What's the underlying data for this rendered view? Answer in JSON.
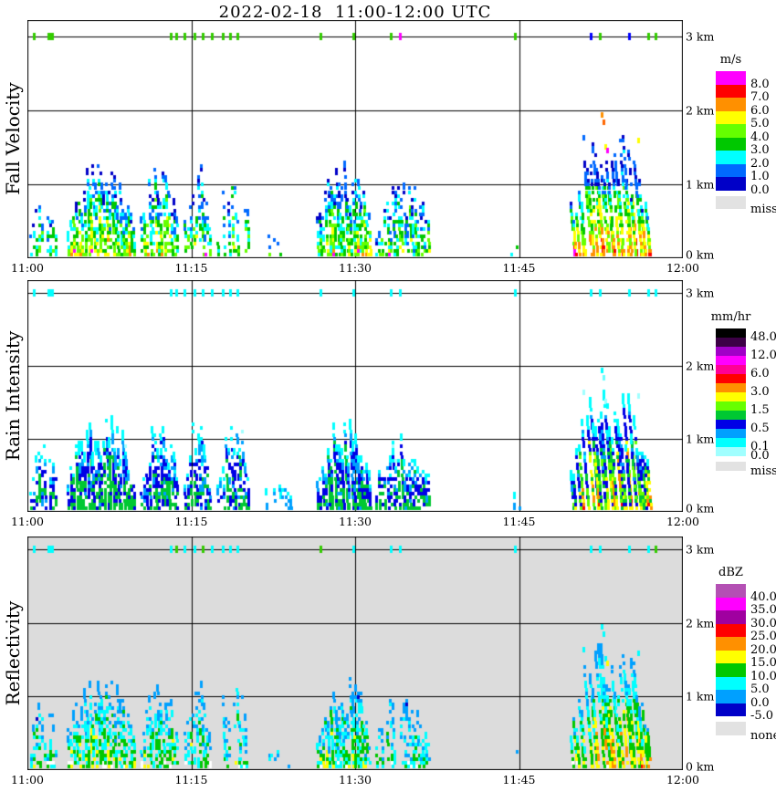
{
  "title": "2022-02-18  11:00-12:00 UTC",
  "axes": {
    "x_tick_labels": [
      "11:00",
      "11:15",
      "11:30",
      "11:45",
      "12:00"
    ],
    "x_tick_minutes": [
      0,
      15,
      30,
      45,
      60
    ],
    "km_labels": [
      "3 km",
      "2 km",
      "1 km",
      "0 km"
    ],
    "km_values": [
      3,
      2,
      1,
      0
    ]
  },
  "panels": [
    {
      "name": "fall-velocity",
      "ylabel": "Fall Velocity",
      "bg": "#FFFFFF",
      "legend": {
        "title": "m/s",
        "block_h": 14.5,
        "entries": [
          {
            "color": "#FF00FF",
            "label": "8.0"
          },
          {
            "color": "#FF0000",
            "label": "7.0"
          },
          {
            "color": "#FF9000",
            "label": "6.0"
          },
          {
            "color": "#FFFF00",
            "label": "5.0"
          },
          {
            "color": "#66FF00",
            "label": "4.0"
          },
          {
            "color": "#00C800",
            "label": "3.0"
          },
          {
            "color": "#00FFFF",
            "label": "2.0"
          },
          {
            "color": "#0069FF",
            "label": "1.0"
          },
          {
            "color": "#0000C8",
            "label": "0.0"
          }
        ],
        "miss": {
          "color": "#E2E2E2",
          "label": "miss"
        }
      }
    },
    {
      "name": "rain-intensity",
      "ylabel": "Rain Intensity",
      "bg": "#FFFFFF",
      "legend": {
        "title": "mm/hr",
        "block_h": 10,
        "entries": [
          {
            "color": "#000000",
            "label": "48.0"
          },
          {
            "color": "#3C0046",
            "label": ""
          },
          {
            "color": "#A000C8",
            "label": "12.0"
          },
          {
            "color": "#FF00FF",
            "label": ""
          },
          {
            "color": "#FF0096",
            "label": "6.0"
          },
          {
            "color": "#FF0000",
            "label": ""
          },
          {
            "color": "#FF9000",
            "label": "3.0"
          },
          {
            "color": "#FFFF00",
            "label": ""
          },
          {
            "color": "#66FF00",
            "label": "1.5"
          },
          {
            "color": "#00C832",
            "label": ""
          },
          {
            "color": "#0000E6",
            "label": "0.5"
          },
          {
            "color": "#00A0FF",
            "label": ""
          },
          {
            "color": "#00FFFF",
            "label": "0.1"
          },
          {
            "color": "#A0FFFF",
            "label": "0.0"
          }
        ],
        "miss": {
          "color": "#E2E2E2",
          "label": "miss"
        }
      }
    },
    {
      "name": "reflectivity",
      "ylabel": "Reflectivity",
      "bg": "#DCDCDC",
      "legend": {
        "title": "dBZ",
        "block_h": 14.5,
        "entries": [
          {
            "color": "#B450B4",
            "label": "40.0"
          },
          {
            "color": "#FF00FF",
            "label": "35.0"
          },
          {
            "color": "#A000A0",
            "label": "30.0"
          },
          {
            "color": "#FF0000",
            "label": "25.0"
          },
          {
            "color": "#FF9000",
            "label": "20.0"
          },
          {
            "color": "#FFFF00",
            "label": "15.0"
          },
          {
            "color": "#00C800",
            "label": "10.0"
          },
          {
            "color": "#00FFFF",
            "label": "5.0"
          },
          {
            "color": "#00A0FF",
            "label": "0.0"
          },
          {
            "color": "#0000C8",
            "label": "-5.0"
          }
        ],
        "miss": {
          "color": "#E2E2E2",
          "label": "none"
        }
      }
    }
  ],
  "chart_data": {
    "type": "heatmap",
    "title": "2022-02-18  11:00-12:00 UTC",
    "date": "2022-02-18",
    "time_range_utc": [
      "11:00",
      "12:00"
    ],
    "x_tick_labels": [
      "11:00",
      "11:15",
      "11:30",
      "11:45",
      "12:00"
    ],
    "height_km_range": [
      0,
      3
    ],
    "height_tick_labels": [
      "3 km",
      "2 km",
      "1 km",
      "0 km"
    ],
    "panels": [
      {
        "name": "Fall Velocity",
        "units": "m/s",
        "scale_values": [
          8.0,
          7.0,
          6.0,
          5.0,
          4.0,
          3.0,
          2.0,
          1.0,
          0.0
        ],
        "missing_label": "miss"
      },
      {
        "name": "Rain Intensity",
        "units": "mm/hr",
        "scale_values": [
          48.0,
          12.0,
          6.0,
          3.0,
          1.5,
          0.5,
          0.1,
          0.0
        ],
        "missing_label": "miss"
      },
      {
        "name": "Reflectivity",
        "units": "dBZ",
        "scale_values": [
          40.0,
          35.0,
          30.0,
          25.0,
          20.0,
          15.0,
          10.0,
          5.0,
          0.0,
          -5.0
        ],
        "missing_label": "none"
      }
    ],
    "echo_clusters": [
      {
        "t_start": 0.2,
        "t_end": 2.6,
        "top_km": 0.95,
        "density": 0.5,
        "strength": 0.8,
        "shear": 2,
        "ri_max": 1.3,
        "rf_max": 16
      },
      {
        "t_start": 3.6,
        "t_end": 9.8,
        "top_km": 1.35,
        "density": 0.75,
        "strength": 1.0,
        "shear": 3,
        "ri_max": 1.3,
        "rf_max": 18
      },
      {
        "t_start": 10.3,
        "t_end": 13.6,
        "top_km": 1.25,
        "density": 0.7,
        "strength": 0.95,
        "shear": 3,
        "ri_max": 1.3,
        "rf_max": 17
      },
      {
        "t_start": 14.3,
        "t_end": 16.6,
        "top_km": 1.3,
        "density": 0.6,
        "strength": 0.85,
        "shear": 3,
        "ri_max": 1.2,
        "rf_max": 16
      },
      {
        "t_start": 17.3,
        "t_end": 20.3,
        "top_km": 1.3,
        "density": 0.55,
        "strength": 0.8,
        "shear": 3,
        "ri_max": 1.2,
        "rf_max": 15
      },
      {
        "t_start": 21.5,
        "t_end": 24.2,
        "top_km": 0.55,
        "density": 0.22,
        "strength": 0.5,
        "shear": 2,
        "ri_max": 0.4,
        "rf_max": 8
      },
      {
        "t_start": 26.4,
        "t_end": 31.2,
        "top_km": 1.38,
        "density": 0.8,
        "strength": 0.9,
        "shear": 4,
        "ri_max": 1.3,
        "rf_max": 17
      },
      {
        "t_start": 31.8,
        "t_end": 36.8,
        "top_km": 1.15,
        "density": 0.6,
        "strength": 0.75,
        "shear": 4,
        "ri_max": 1.2,
        "rf_max": 14
      },
      {
        "t_start": 44.2,
        "t_end": 45.0,
        "top_km": 0.4,
        "density": 0.3,
        "strength": 0.5,
        "shear": 2,
        "ri_max": 0.3,
        "rf_max": 7
      },
      {
        "t_start": 49.6,
        "t_end": 56.8,
        "top_km": 1.78,
        "density": 0.85,
        "strength": 1.35,
        "shear": 8,
        "ri_max": 6.0,
        "rf_max": 29,
        "top_cold": true
      }
    ],
    "ceiling_ticks": [
      {
        "t": 0.6,
        "colors": [
          "#33CC00",
          "#00FFFF",
          "#00FFFF"
        ]
      },
      {
        "t": 2.1,
        "w": 7,
        "colors": [
          "#33CC00",
          "#00FFFF",
          "#00FFFF"
        ]
      },
      {
        "t": 13.2,
        "colors": [
          "#33CC00",
          "#00FFFF",
          "#00FFFF"
        ]
      },
      {
        "t": 13.7,
        "colors": [
          "#33CC00",
          "#00FFFF",
          "#33CC00"
        ]
      },
      {
        "t": 14.4,
        "colors": [
          "#33CC00",
          "#00FFFF",
          "#00FFFF"
        ]
      },
      {
        "t": 15.3,
        "colors": [
          "#33CC00",
          "#00FFFF",
          "#00FFFF"
        ]
      },
      {
        "t": 16.1,
        "colors": [
          "#33CC00",
          "#00FFFF",
          "#33CC00"
        ]
      },
      {
        "t": 16.9,
        "colors": [
          "#33CC00",
          "#00FFFF",
          "#00FFFF"
        ]
      },
      {
        "t": 17.9,
        "colors": [
          "#33CC00",
          "#00FFFF",
          "#00FFFF"
        ]
      },
      {
        "t": 18.6,
        "colors": [
          "#33CC00",
          "#00FFFF",
          "#00FFFF"
        ]
      },
      {
        "t": 19.3,
        "colors": [
          "#33CC00",
          "#00FFFF",
          "#00FFFF"
        ]
      },
      {
        "t": 26.9,
        "colors": [
          "#33CC00",
          "#00FFFF",
          "#33CC00"
        ]
      },
      {
        "t": 29.9,
        "colors": [
          "#33CC00",
          "#00FFFF",
          "#00FFFF"
        ]
      },
      {
        "t": 33.3,
        "colors": [
          "#33CC00",
          "#00FFFF",
          "#00FFFF"
        ]
      },
      {
        "t": 34.1,
        "colors": [
          "#FF00FF",
          "#00FFFF",
          "#00FFFF"
        ]
      },
      {
        "t": 44.7,
        "colors": [
          "#33CC00",
          "#00FFFF",
          "#00FFFF"
        ]
      },
      {
        "t": 51.6,
        "colors": [
          "#0000FF",
          "#00FFFF",
          "#00FFFF"
        ]
      },
      {
        "t": 52.4,
        "colors": [
          "#33CC00",
          "#00FFFF",
          "#00FFFF"
        ]
      },
      {
        "t": 55.1,
        "colors": [
          "#0000FF",
          "#00FFFF",
          "#00FFFF"
        ]
      },
      {
        "t": 56.9,
        "colors": [
          "#33CC00",
          "#00FFFF",
          "#00FFFF"
        ]
      },
      {
        "t": 57.5,
        "colors": [
          "#33CC00",
          "#00FFFF",
          "#33CC00"
        ]
      }
    ],
    "high_specks": [
      {
        "t": 52.6,
        "h": 1.93,
        "colors": [
          "#FF9000",
          "#00FFFF",
          "#00FFFF"
        ]
      },
      {
        "t": 52.75,
        "h": 1.83,
        "colors": [
          "#FF6600",
          "#66FFFF",
          "#00FFFF"
        ]
      },
      {
        "t": 52.9,
        "h": 1.5,
        "colors": [
          "#FFFF00",
          "#A0FFFF",
          "#00FFFF"
        ]
      },
      {
        "t": 53.05,
        "h": 1.44,
        "colors": [
          "#FF00FF",
          "#00FFFF",
          "#FFFF00"
        ]
      },
      {
        "t": 55.9,
        "h": 1.58,
        "colors": [
          "#FFFF00",
          "#A0FFFF",
          "#00FFFF"
        ]
      },
      {
        "t": 50.9,
        "h": 1.62,
        "colors": [
          "#0069FF",
          "#A0FFFF",
          "#00FFFF"
        ]
      }
    ],
    "render": {
      "panels": [
        {
          "mode": "fv",
          "colors": [
            "#0000C8",
            "#0069FF",
            "#00FFFF",
            "#00C800",
            "#66FF00",
            "#FFFF00",
            "#FF9000",
            "#FF0000",
            "#FF00FF"
          ]
        },
        {
          "mode": "ri",
          "colors": [
            "#A0FFFF",
            "#00FFFF",
            "#00A0FF",
            "#0000E6",
            "#00C832",
            "#66FF00",
            "#FFFF00",
            "#FF9000",
            "#FF0000",
            "#FF0096"
          ],
          "thresholds": [
            0.1,
            0.25,
            0.5,
            1.0,
            1.5,
            2.0,
            3.0,
            4.5,
            6.0
          ]
        },
        {
          "mode": "rf",
          "colors": [
            "#FFFFFF",
            "#0000C8",
            "#00A0FF",
            "#00FFFF",
            "#00C800",
            "#FFFF00",
            "#FF9000",
            "#FF0000"
          ],
          "thresholds": [
            -5,
            0,
            5,
            10,
            15,
            20,
            25
          ]
        }
      ]
    }
  }
}
